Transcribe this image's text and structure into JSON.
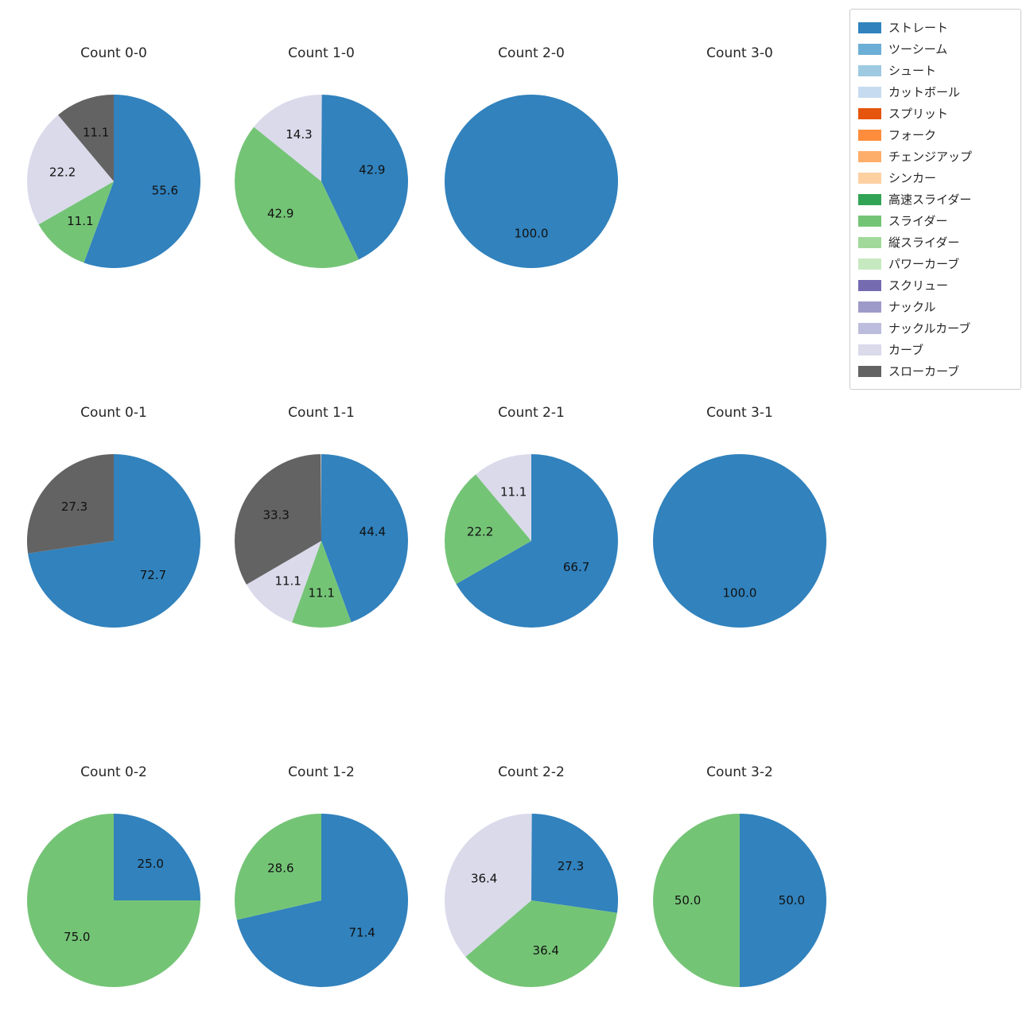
{
  "palette": {
    "ストレート": "#3182bd",
    "ツーシーム": "#6baed6",
    "シュート": "#9ecae1",
    "カットボール": "#c6dbef",
    "スプリット": "#e6550d",
    "フォーク": "#fd8d3c",
    "チェンジアップ": "#fdae6b",
    "シンカー": "#fdd0a2",
    "高速スライダー": "#31a354",
    "スライダー": "#74c476",
    "縦スライダー": "#a1d99b",
    "パワーカーブ": "#c7e9c0",
    "スクリュー": "#756bb1",
    "ナックル": "#9e9ac8",
    "ナックルカーブ": "#bcbddc",
    "カーブ": "#dadaeb",
    "スローカーブ": "#636363"
  },
  "legend": {
    "position": "top-right",
    "items": [
      "ストレート",
      "ツーシーム",
      "シュート",
      "カットボール",
      "スプリット",
      "フォーク",
      "チェンジアップ",
      "シンカー",
      "高速スライダー",
      "スライダー",
      "縦スライダー",
      "パワーカーブ",
      "スクリュー",
      "ナックル",
      "ナックルカーブ",
      "カーブ",
      "スローカーブ"
    ]
  },
  "chart_data": [
    {
      "type": "pie",
      "title": "Count 0-0",
      "units": "percent",
      "start_angle": 90,
      "direction": "clockwise",
      "slices": [
        {
          "label": "ストレート",
          "value": 55.6
        },
        {
          "label": "スライダー",
          "value": 11.1
        },
        {
          "label": "カーブ",
          "value": 22.2
        },
        {
          "label": "スローカーブ",
          "value": 11.1
        }
      ]
    },
    {
      "type": "pie",
      "title": "Count 1-0",
      "units": "percent",
      "start_angle": 90,
      "direction": "clockwise",
      "slices": [
        {
          "label": "ストレート",
          "value": 42.9
        },
        {
          "label": "スライダー",
          "value": 42.9
        },
        {
          "label": "カーブ",
          "value": 14.3
        }
      ]
    },
    {
      "type": "pie",
      "title": "Count 2-0",
      "units": "percent",
      "start_angle": 90,
      "direction": "clockwise",
      "slices": [
        {
          "label": "ストレート",
          "value": 100.0
        }
      ]
    },
    {
      "type": "pie",
      "title": "Count 3-0",
      "units": "percent",
      "start_angle": 90,
      "direction": "clockwise",
      "slices": []
    },
    {
      "type": "pie",
      "title": "Count 0-1",
      "units": "percent",
      "start_angle": 90,
      "direction": "clockwise",
      "slices": [
        {
          "label": "ストレート",
          "value": 72.7
        },
        {
          "label": "スローカーブ",
          "value": 27.3
        }
      ]
    },
    {
      "type": "pie",
      "title": "Count 1-1",
      "units": "percent",
      "start_angle": 90,
      "direction": "clockwise",
      "slices": [
        {
          "label": "ストレート",
          "value": 44.4
        },
        {
          "label": "スライダー",
          "value": 11.1
        },
        {
          "label": "カーブ",
          "value": 11.1
        },
        {
          "label": "スローカーブ",
          "value": 33.3
        }
      ]
    },
    {
      "type": "pie",
      "title": "Count 2-1",
      "units": "percent",
      "start_angle": 90,
      "direction": "clockwise",
      "slices": [
        {
          "label": "ストレート",
          "value": 66.7
        },
        {
          "label": "スライダー",
          "value": 22.2
        },
        {
          "label": "カーブ",
          "value": 11.1
        }
      ]
    },
    {
      "type": "pie",
      "title": "Count 3-1",
      "units": "percent",
      "start_angle": 90,
      "direction": "clockwise",
      "slices": [
        {
          "label": "ストレート",
          "value": 100.0
        }
      ]
    },
    {
      "type": "pie",
      "title": "Count 0-2",
      "units": "percent",
      "start_angle": 90,
      "direction": "clockwise",
      "slices": [
        {
          "label": "ストレート",
          "value": 25.0
        },
        {
          "label": "スライダー",
          "value": 75.0
        }
      ]
    },
    {
      "type": "pie",
      "title": "Count 1-2",
      "units": "percent",
      "start_angle": 90,
      "direction": "clockwise",
      "slices": [
        {
          "label": "ストレート",
          "value": 71.4
        },
        {
          "label": "スライダー",
          "value": 28.6
        }
      ]
    },
    {
      "type": "pie",
      "title": "Count 2-2",
      "units": "percent",
      "start_angle": 90,
      "direction": "clockwise",
      "slices": [
        {
          "label": "ストレート",
          "value": 27.3
        },
        {
          "label": "スライダー",
          "value": 36.4
        },
        {
          "label": "カーブ",
          "value": 36.4
        }
      ]
    },
    {
      "type": "pie",
      "title": "Count 3-2",
      "units": "percent",
      "start_angle": 90,
      "direction": "clockwise",
      "slices": [
        {
          "label": "ストレート",
          "value": 50.0
        },
        {
          "label": "スライダー",
          "value": 50.0
        }
      ]
    }
  ]
}
